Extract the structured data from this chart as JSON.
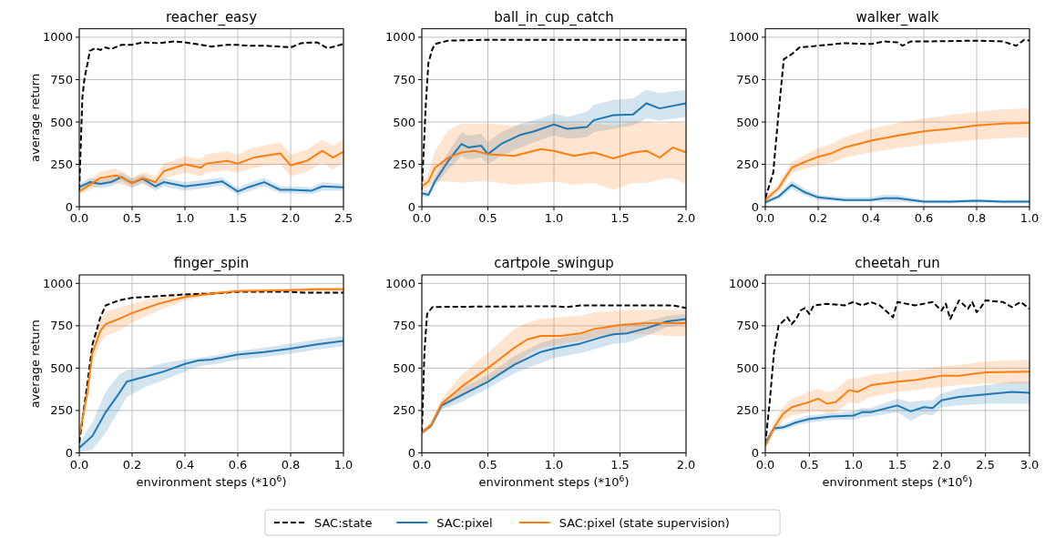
{
  "chart_data": [
    {
      "type": "line",
      "title": "reacher_easy",
      "ylabel": "average return",
      "xlim": [
        0,
        2.5
      ],
      "xticks": [
        {
          "value": 0,
          "label": "0.0"
        },
        0.5,
        {
          "value": 1,
          "label": "1.0"
        },
        1.5,
        {
          "value": 2,
          "label": "2.0"
        },
        2.5
      ],
      "ylim": [
        0,
        1050
      ],
      "yticks": [
        0,
        250,
        500,
        750,
        1000
      ],
      "grid": true,
      "series": [
        {
          "color": "#000000",
          "line_style": "dashed",
          "x": [
            0,
            0.03,
            0.05,
            0.08,
            0.1,
            0.15,
            0.2,
            0.25,
            0.3,
            0.4,
            0.5,
            0.6,
            0.75,
            0.9,
            1.0,
            1.1,
            1.25,
            1.4,
            1.5,
            1.6,
            1.75,
            1.9,
            2.0,
            2.1,
            2.25,
            2.35,
            2.5
          ],
          "values": [
            100,
            650,
            760,
            850,
            920,
            935,
            925,
            940,
            930,
            955,
            955,
            970,
            965,
            975,
            970,
            960,
            945,
            955,
            955,
            950,
            950,
            945,
            940,
            965,
            970,
            935,
            960
          ]
        },
        {
          "color": "#1f77b4",
          "x": [
            0,
            0.1,
            0.2,
            0.3,
            0.4,
            0.5,
            0.6,
            0.72,
            0.8,
            1.0,
            1.2,
            1.35,
            1.5,
            1.6,
            1.75,
            1.9,
            2.0,
            2.2,
            2.3,
            2.5
          ],
          "values": [
            115,
            145,
            135,
            145,
            175,
            140,
            165,
            120,
            145,
            120,
            135,
            150,
            90,
            115,
            145,
            100,
            100,
            95,
            120,
            115
          ],
          "lower": [
            95,
            120,
            110,
            120,
            150,
            115,
            140,
            95,
            120,
            95,
            110,
            125,
            70,
            90,
            120,
            80,
            80,
            75,
            95,
            95
          ],
          "upper": [
            135,
            170,
            160,
            170,
            200,
            165,
            190,
            145,
            170,
            145,
            160,
            175,
            110,
            140,
            170,
            120,
            120,
            115,
            145,
            135
          ]
        },
        {
          "color": "#ff7f0e",
          "x": [
            0,
            0.1,
            0.2,
            0.35,
            0.42,
            0.5,
            0.6,
            0.72,
            0.8,
            0.9,
            1.0,
            1.15,
            1.2,
            1.4,
            1.5,
            1.65,
            1.75,
            1.9,
            2.0,
            2.15,
            2.3,
            2.4,
            2.5
          ],
          "values": [
            90,
            130,
            170,
            185,
            165,
            140,
            170,
            145,
            210,
            230,
            250,
            230,
            255,
            270,
            255,
            290,
            300,
            315,
            245,
            270,
            330,
            290,
            325
          ],
          "lower": [
            75,
            100,
            130,
            140,
            125,
            110,
            135,
            110,
            165,
            185,
            200,
            180,
            200,
            215,
            200,
            230,
            240,
            250,
            180,
            205,
            260,
            220,
            260
          ],
          "upper": [
            105,
            160,
            210,
            225,
            205,
            170,
            205,
            180,
            255,
            275,
            300,
            280,
            310,
            325,
            310,
            350,
            360,
            380,
            310,
            335,
            395,
            360,
            395
          ]
        }
      ]
    },
    {
      "type": "line",
      "title": "ball_in_cup_catch",
      "xlim": [
        0,
        2
      ],
      "xticks": [
        {
          "value": 0,
          "label": "0.0"
        },
        0.5,
        {
          "value": 1,
          "label": "1.0"
        },
        1.5,
        {
          "value": 2,
          "label": "2.0"
        }
      ],
      "ylim": [
        0,
        1050
      ],
      "yticks": [
        0,
        250,
        500,
        750,
        1000
      ],
      "grid": true,
      "series": [
        {
          "color": "#000000",
          "line_style": "dashed",
          "x": [
            0,
            0.03,
            0.05,
            0.08,
            0.1,
            0.2,
            0.5,
            1.0,
            1.5,
            2.0
          ],
          "values": [
            100,
            600,
            850,
            930,
            960,
            980,
            985,
            985,
            985,
            985
          ]
        },
        {
          "color": "#1f77b4",
          "x": [
            0,
            0.05,
            0.1,
            0.2,
            0.3,
            0.35,
            0.45,
            0.5,
            0.6,
            0.75,
            0.85,
            1.0,
            1.1,
            1.25,
            1.3,
            1.45,
            1.6,
            1.7,
            1.8,
            2.0
          ],
          "values": [
            80,
            70,
            150,
            270,
            370,
            350,
            360,
            310,
            370,
            425,
            445,
            485,
            460,
            470,
            510,
            540,
            545,
            610,
            580,
            610
          ],
          "lower": [
            60,
            55,
            120,
            220,
            300,
            280,
            290,
            250,
            300,
            350,
            380,
            420,
            400,
            410,
            440,
            460,
            480,
            520,
            510,
            530
          ],
          "upper": [
            100,
            90,
            180,
            320,
            440,
            420,
            430,
            380,
            440,
            490,
            510,
            550,
            530,
            560,
            600,
            630,
            640,
            690,
            670,
            690
          ]
        },
        {
          "color": "#ff7f0e",
          "x": [
            0,
            0.05,
            0.1,
            0.2,
            0.3,
            0.4,
            0.5,
            0.7,
            0.9,
            1.0,
            1.15,
            1.3,
            1.45,
            1.6,
            1.7,
            1.8,
            1.9,
            2.0
          ],
          "values": [
            120,
            150,
            230,
            290,
            320,
            330,
            310,
            300,
            340,
            330,
            300,
            320,
            285,
            320,
            330,
            290,
            350,
            320
          ],
          "lower": [
            100,
            110,
            150,
            150,
            140,
            150,
            150,
            130,
            140,
            150,
            130,
            140,
            100,
            140,
            140,
            160,
            170,
            130
          ],
          "upper": [
            140,
            200,
            330,
            450,
            490,
            490,
            490,
            480,
            490,
            500,
            490,
            490,
            480,
            500,
            500,
            490,
            500,
            490
          ]
        }
      ]
    },
    {
      "type": "line",
      "title": "walker_walk",
      "xlim": [
        0,
        1
      ],
      "xticks": [
        {
          "value": 0,
          "label": "0.0"
        },
        0.2,
        0.4,
        0.6,
        0.8,
        {
          "value": 1,
          "label": "1.0"
        }
      ],
      "ylim": [
        0,
        1050
      ],
      "yticks": [
        0,
        250,
        500,
        750,
        1000
      ],
      "grid": true,
      "series": [
        {
          "color": "#000000",
          "line_style": "dashed",
          "x": [
            0,
            0.03,
            0.05,
            0.07,
            0.1,
            0.13,
            0.2,
            0.3,
            0.4,
            0.45,
            0.5,
            0.52,
            0.55,
            0.6,
            0.8,
            0.9,
            0.95,
            0.98,
            1.0
          ],
          "values": [
            50,
            200,
            550,
            870,
            900,
            940,
            950,
            965,
            960,
            975,
            970,
            950,
            975,
            975,
            980,
            975,
            950,
            985,
            980
          ]
        },
        {
          "color": "#1f77b4",
          "x": [
            0,
            0.05,
            0.1,
            0.15,
            0.2,
            0.3,
            0.4,
            0.45,
            0.5,
            0.6,
            0.7,
            0.8,
            0.9,
            1.0
          ],
          "values": [
            25,
            60,
            130,
            85,
            55,
            40,
            40,
            50,
            50,
            30,
            30,
            35,
            30,
            30
          ],
          "lower": [
            15,
            45,
            105,
            65,
            40,
            30,
            30,
            30,
            30,
            20,
            20,
            25,
            20,
            20
          ],
          "upper": [
            35,
            75,
            155,
            105,
            70,
            55,
            55,
            70,
            70,
            40,
            40,
            45,
            40,
            40
          ]
        },
        {
          "color": "#ff7f0e",
          "x": [
            0,
            0.05,
            0.1,
            0.15,
            0.2,
            0.25,
            0.3,
            0.4,
            0.5,
            0.6,
            0.7,
            0.8,
            0.9,
            1.0
          ],
          "values": [
            40,
            110,
            230,
            265,
            295,
            315,
            350,
            390,
            420,
            445,
            460,
            480,
            490,
            495
          ],
          "lower": [
            25,
            85,
            195,
            225,
            245,
            260,
            290,
            320,
            345,
            365,
            380,
            395,
            405,
            410
          ],
          "upper": [
            55,
            135,
            265,
            305,
            345,
            370,
            410,
            460,
            495,
            520,
            540,
            560,
            575,
            580
          ]
        }
      ]
    },
    {
      "type": "line",
      "title": "finger_spin",
      "ylabel": "average return",
      "xlabel": "environment steps (*10$^{6}$)",
      "xlim": [
        0,
        1
      ],
      "xticks": [
        {
          "value": 0,
          "label": "0.0"
        },
        0.2,
        0.4,
        0.6,
        0.8,
        {
          "value": 1,
          "label": "1.0"
        }
      ],
      "ylim": [
        0,
        1050
      ],
      "yticks": [
        0,
        250,
        500,
        750,
        1000
      ],
      "grid": true,
      "series": [
        {
          "color": "#000000",
          "line_style": "dashed",
          "x": [
            0,
            0.03,
            0.05,
            0.08,
            0.1,
            0.15,
            0.2,
            0.3,
            0.4,
            0.5,
            0.6,
            0.8,
            0.85,
            1.0
          ],
          "values": [
            60,
            400,
            640,
            800,
            870,
            900,
            915,
            925,
            935,
            940,
            950,
            950,
            945,
            945
          ]
        },
        {
          "color": "#1f77b4",
          "x": [
            0,
            0.05,
            0.1,
            0.15,
            0.18,
            0.25,
            0.32,
            0.4,
            0.45,
            0.5,
            0.6,
            0.7,
            0.8,
            0.9,
            1.0
          ],
          "values": [
            30,
            100,
            240,
            350,
            420,
            450,
            480,
            525,
            545,
            550,
            580,
            595,
            615,
            640,
            660
          ],
          "lower": [
            0,
            20,
            120,
            250,
            330,
            390,
            430,
            480,
            510,
            520,
            550,
            565,
            585,
            610,
            630
          ],
          "upper": [
            60,
            180,
            360,
            460,
            490,
            500,
            530,
            550,
            560,
            570,
            600,
            620,
            645,
            670,
            690
          ]
        },
        {
          "color": "#ff7f0e",
          "x": [
            0,
            0.03,
            0.05,
            0.08,
            0.1,
            0.15,
            0.2,
            0.3,
            0.4,
            0.5,
            0.6,
            0.8,
            0.9,
            1.0
          ],
          "values": [
            100,
            350,
            590,
            720,
            760,
            790,
            825,
            880,
            920,
            940,
            955,
            960,
            965,
            965
          ],
          "lower": [
            80,
            300,
            530,
            650,
            690,
            720,
            770,
            840,
            900,
            930,
            945,
            950,
            955,
            955
          ],
          "upper": [
            120,
            400,
            650,
            790,
            830,
            860,
            880,
            920,
            940,
            955,
            965,
            970,
            975,
            975
          ]
        }
      ]
    },
    {
      "type": "line",
      "title": "cartpole_swingup",
      "xlabel": "environment steps (*10$^{6}$)",
      "legend": "bottom",
      "xlim": [
        0,
        2
      ],
      "xticks": [
        {
          "value": 0,
          "label": "0.0"
        },
        0.5,
        {
          "value": 1,
          "label": "1.0"
        },
        1.5,
        {
          "value": 2,
          "label": "2.0"
        }
      ],
      "ylim": [
        0,
        1050
      ],
      "yticks": [
        0,
        250,
        500,
        750,
        1000
      ],
      "grid": true,
      "series": [
        {
          "name": "SAC:state",
          "color": "#000000",
          "line_style": "dashed",
          "x": [
            0,
            0.02,
            0.04,
            0.08,
            0.2,
            1.0,
            1.1,
            1.2,
            1.9,
            2.0
          ],
          "values": [
            120,
            600,
            820,
            860,
            862,
            865,
            860,
            870,
            870,
            855
          ]
        },
        {
          "name": "SAC:pixel",
          "color": "#1f77b4",
          "x": [
            0,
            0.07,
            0.15,
            0.3,
            0.5,
            0.7,
            0.9,
            1.0,
            1.2,
            1.35,
            1.45,
            1.55,
            1.7,
            1.85,
            2.0
          ],
          "values": [
            120,
            160,
            280,
            340,
            420,
            520,
            595,
            615,
            645,
            680,
            700,
            705,
            735,
            775,
            790
          ],
          "lower": [
            105,
            145,
            255,
            300,
            380,
            470,
            530,
            560,
            590,
            620,
            645,
            650,
            690,
            740,
            760
          ],
          "upper": [
            135,
            175,
            305,
            380,
            460,
            570,
            650,
            670,
            700,
            730,
            750,
            760,
            780,
            805,
            820
          ]
        },
        {
          "name": "SAC:pixel (state supervision)",
          "color": "#ff7f0e",
          "x": [
            0,
            0.07,
            0.15,
            0.3,
            0.5,
            0.7,
            0.8,
            0.9,
            1.05,
            1.2,
            1.3,
            1.5,
            1.7,
            1.85,
            2.0
          ],
          "values": [
            120,
            165,
            290,
            390,
            500,
            620,
            670,
            690,
            690,
            705,
            730,
            755,
            765,
            765,
            765
          ],
          "lower": [
            105,
            150,
            260,
            330,
            420,
            520,
            580,
            620,
            640,
            660,
            680,
            700,
            700,
            690,
            690
          ],
          "upper": [
            135,
            180,
            320,
            460,
            590,
            730,
            770,
            790,
            800,
            810,
            830,
            840,
            845,
            845,
            840
          ]
        }
      ]
    },
    {
      "type": "line",
      "title": "cheetah_run",
      "xlabel": "environment steps (*10$^{6}$)",
      "xlim": [
        0,
        3
      ],
      "xticks": [
        {
          "value": 0,
          "label": "0.0"
        },
        0.5,
        {
          "value": 1,
          "label": "1.0"
        },
        1.5,
        {
          "value": 2,
          "label": "2.0"
        },
        2.5,
        {
          "value": 3,
          "label": "3.0"
        }
      ],
      "ylim": [
        0,
        1050
      ],
      "yticks": [
        0,
        250,
        500,
        750,
        1000
      ],
      "grid": true,
      "series": [
        {
          "color": "#000000",
          "line_style": "dashed",
          "x": [
            0,
            0.05,
            0.1,
            0.15,
            0.25,
            0.3,
            0.35,
            0.4,
            0.45,
            0.5,
            0.55,
            0.7,
            0.9,
            1.0,
            1.1,
            1.2,
            1.3,
            1.45,
            1.5,
            1.7,
            1.9,
            2.0,
            2.05,
            2.1,
            2.2,
            2.3,
            2.35,
            2.4,
            2.45,
            2.5,
            2.7,
            2.8,
            2.9,
            3.0
          ],
          "values": [
            50,
            300,
            600,
            750,
            800,
            760,
            790,
            840,
            855,
            820,
            870,
            880,
            870,
            890,
            870,
            890,
            870,
            800,
            890,
            870,
            890,
            840,
            880,
            790,
            900,
            850,
            890,
            830,
            860,
            900,
            890,
            860,
            890,
            850
          ]
        },
        {
          "color": "#1f77b4",
          "x": [
            0,
            0.1,
            0.2,
            0.35,
            0.5,
            0.75,
            1.0,
            1.1,
            1.2,
            1.5,
            1.65,
            1.8,
            1.9,
            2.0,
            2.2,
            2.5,
            2.8,
            3.0
          ],
          "values": [
            60,
            145,
            150,
            180,
            200,
            215,
            220,
            240,
            240,
            280,
            245,
            270,
            265,
            310,
            330,
            345,
            360,
            355
          ],
          "lower": [
            45,
            130,
            135,
            160,
            180,
            195,
            195,
            210,
            215,
            240,
            190,
            230,
            220,
            270,
            280,
            290,
            290,
            290
          ],
          "upper": [
            75,
            160,
            165,
            200,
            220,
            235,
            245,
            265,
            265,
            320,
            300,
            310,
            310,
            350,
            380,
            400,
            420,
            420
          ]
        },
        {
          "color": "#ff7f0e",
          "x": [
            0,
            0.1,
            0.2,
            0.3,
            0.5,
            0.6,
            0.7,
            0.8,
            0.95,
            1.05,
            1.2,
            1.5,
            1.7,
            2.0,
            2.2,
            2.5,
            3.0
          ],
          "values": [
            40,
            150,
            230,
            270,
            300,
            320,
            290,
            300,
            370,
            360,
            400,
            420,
            430,
            455,
            455,
            475,
            480
          ],
          "lower": [
            25,
            120,
            190,
            220,
            240,
            250,
            230,
            240,
            300,
            290,
            330,
            360,
            370,
            390,
            400,
            410,
            410
          ],
          "upper": [
            55,
            180,
            270,
            320,
            360,
            380,
            360,
            370,
            440,
            440,
            460,
            480,
            490,
            510,
            520,
            540,
            550
          ]
        }
      ]
    }
  ]
}
